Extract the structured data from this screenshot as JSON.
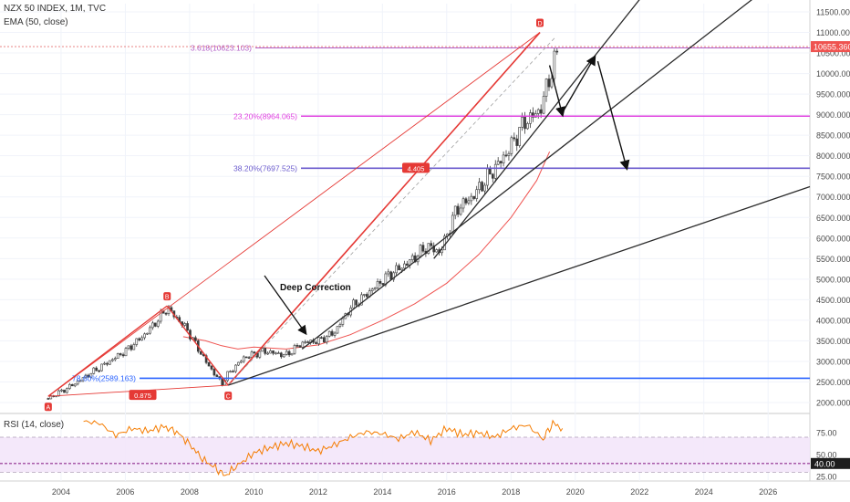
{
  "header": {
    "symbol_line": "NZX 50 INDEX, 1M, TVC",
    "ema_line": "EMA (50, close)",
    "rsi_line": "RSI (14, close)"
  },
  "price_axis": {
    "ticks": [
      "11500.000",
      "11000.000",
      "10500.000",
      "10000.000",
      "9500.000",
      "9000.000",
      "8500.000",
      "8000.000",
      "7500.000",
      "7000.000",
      "6500.000",
      "6000.000",
      "5500.000",
      "5000.000",
      "4500.000",
      "4000.000",
      "3500.000",
      "3000.000",
      "2500.000",
      "2000.000"
    ],
    "current_price": "10655.360"
  },
  "rsi_axis": {
    "ticks": [
      "75.00",
      "50.00",
      "40.00",
      "25.00"
    ]
  },
  "time_axis": {
    "ticks": [
      "2004",
      "2006",
      "2008",
      "2010",
      "2012",
      "2014",
      "2016",
      "2018",
      "2020",
      "2022",
      "2024",
      "2026"
    ]
  },
  "fib_levels": [
    {
      "label": "3.618(10623.103)",
      "color": "#b05cc6"
    },
    {
      "label": "23.20%(8964.065)",
      "color": "#e040e0"
    },
    {
      "label": "38.20%(7697.525)",
      "color": "#6a5acd"
    },
    {
      "label": "78.60%(2589.163)",
      "color": "#2962ff"
    }
  ],
  "points": {
    "a": "A",
    "b": "B",
    "c": "C",
    "d": "D"
  },
  "ratios": {
    "ac": "0.875",
    "cd": "4.405"
  },
  "annotation": "Deep Correction",
  "colors": {
    "up": "#26a69a",
    "down": "#ef5350",
    "candle": "#3a3a3a",
    "ema": "#ef5350",
    "rsi": "#f57c00",
    "pattern": "#e53935"
  },
  "chart_data": {
    "type": "candlestick",
    "series": [
      {
        "name": "NZX 50 INDEX",
        "x": [
          2003.6,
          2004.2,
          2004.8,
          2005.4,
          2006.0,
          2006.6,
          2007.0,
          2007.3,
          2007.9,
          2008.5,
          2009.0,
          2009.2,
          2009.7,
          2010.3,
          2011.0,
          2011.5,
          2012.0,
          2012.5,
          2013.0,
          2013.6,
          2014.2,
          2014.8,
          2015.4,
          2015.8,
          2016.3,
          2016.8,
          2017.4,
          2017.9,
          2018.4,
          2018.9,
          2019.2,
          2019.5
        ],
        "y": [
          2100,
          2350,
          2650,
          2950,
          3250,
          3650,
          4000,
          4300,
          3800,
          3000,
          2450,
          2700,
          3100,
          3250,
          3150,
          3450,
          3500,
          3700,
          4300,
          4700,
          5100,
          5400,
          5800,
          5650,
          6700,
          7000,
          7600,
          8100,
          8800,
          9100,
          9900,
          10655
        ]
      },
      {
        "name": "EMA (50, close)",
        "x": [
          2007.8,
          2008.5,
          2009.0,
          2009.5,
          2010.0,
          2011.0,
          2012.0,
          2013.0,
          2014.0,
          2015.0,
          2016.0,
          2017.0,
          2018.0,
          2018.8,
          2019.2
        ],
        "y": [
          3600,
          3500,
          3380,
          3300,
          3350,
          3300,
          3400,
          3650,
          4000,
          4400,
          4900,
          5600,
          6500,
          7400,
          8100
        ]
      },
      {
        "name": "RSI (14, close)",
        "x": [
          2004.7,
          2005.2,
          2005.7,
          2006.2,
          2006.7,
          2007.2,
          2007.6,
          2008.0,
          2008.4,
          2008.8,
          2009.1,
          2009.5,
          2010.0,
          2010.5,
          2011.0,
          2011.5,
          2012.0,
          2012.5,
          2013.0,
          2013.5,
          2014.0,
          2014.5,
          2015.0,
          2015.5,
          2016.0,
          2016.5,
          2017.0,
          2017.5,
          2018.0,
          2018.5,
          2019.0,
          2019.3,
          2019.6
        ],
        "y": [
          88,
          86,
          72,
          80,
          77,
          82,
          76,
          62,
          45,
          35,
          26,
          38,
          52,
          58,
          63,
          60,
          54,
          61,
          70,
          76,
          74,
          68,
          76,
          66,
          80,
          73,
          75,
          70,
          80,
          84,
          68,
          86,
          80
        ]
      }
    ],
    "ylim": [
      1800,
      11700
    ],
    "rsi_ylim": [
      20,
      95
    ],
    "xlim": [
      2002.1,
      2027.3
    ]
  }
}
